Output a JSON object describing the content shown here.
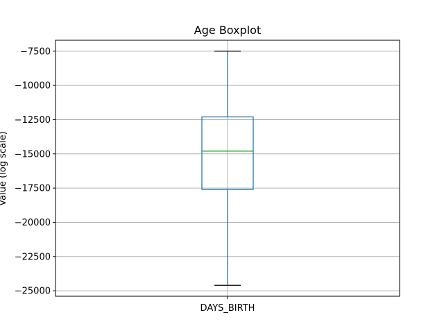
{
  "chart_data": {
    "type": "boxplot",
    "title": "Age Boxplot",
    "xlabel": "",
    "ylabel": "Value (log scale)",
    "categories": [
      "DAYS_BIRTH"
    ],
    "boxes": [
      {
        "category": "DAYS_BIRTH",
        "whisker_low": -24600,
        "q1": -17600,
        "median": -14800,
        "q3": -12300,
        "whisker_high": -7500
      }
    ],
    "ylim": [
      -25400,
      -6700
    ],
    "yticks": [
      -25000,
      -22500,
      -20000,
      -17500,
      -15000,
      -12500,
      -10000,
      -7500
    ],
    "ytick_labels": [
      "−25000",
      "−22500",
      "−20000",
      "−17500",
      "−15000",
      "−12500",
      "−10000",
      "−7500"
    ],
    "grid": true,
    "colors": {
      "box": "#1f77b4",
      "median": "#2ca02c",
      "caps": "#000000",
      "grid": "#b0b0b0"
    }
  }
}
